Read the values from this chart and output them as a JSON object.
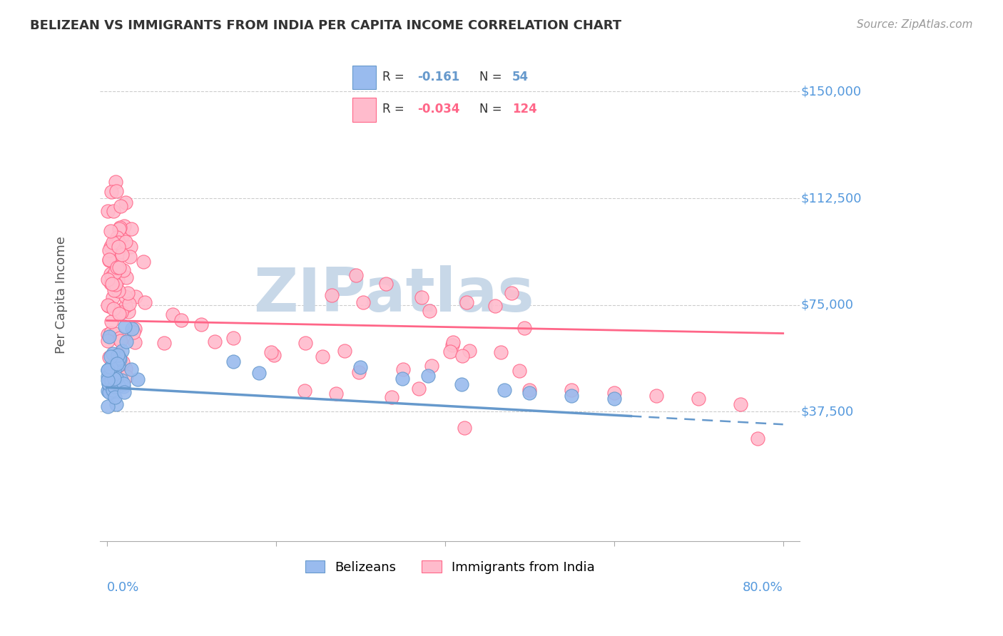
{
  "title": "BELIZEAN VS IMMIGRANTS FROM INDIA PER CAPITA INCOME CORRELATION CHART",
  "source": "Source: ZipAtlas.com",
  "ylabel": "Per Capita Income",
  "legend_blue_r": "-0.161",
  "legend_blue_n": "54",
  "legend_pink_r": "-0.034",
  "legend_pink_n": "124",
  "blue_color": "#6699CC",
  "pink_color": "#FF6688",
  "blue_scatter_color": "#99BBEE",
  "pink_scatter_color": "#FFBBCC",
  "watermark": "ZIPatlas",
  "watermark_color": "#C8D8E8",
  "belizeans_label": "Belizeans",
  "india_label": "Immigrants from India",
  "grid_color": "#CCCCCC",
  "axis_color": "#AAAAAA",
  "title_color": "#333333",
  "source_color": "#999999",
  "tick_label_color": "#5599DD"
}
